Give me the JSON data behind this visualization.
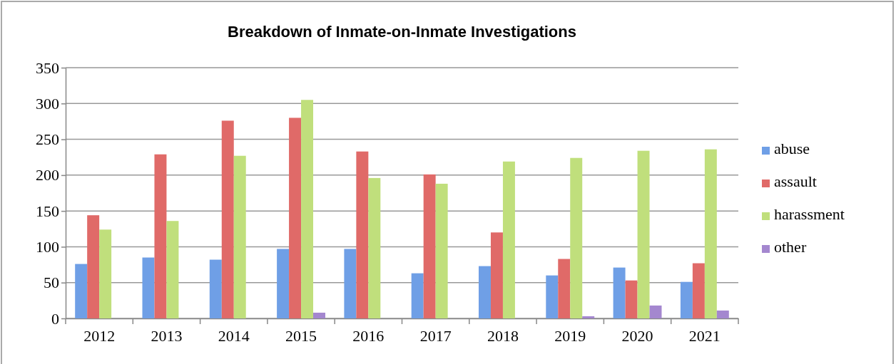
{
  "chart_data": {
    "type": "bar",
    "title": "Breakdown of Inmate-on-Inmate Investigations",
    "categories": [
      "2012",
      "2013",
      "2014",
      "2015",
      "2016",
      "2017",
      "2018",
      "2019",
      "2020",
      "2021"
    ],
    "series": [
      {
        "name": "abuse",
        "color": "#6f9fe6",
        "values": [
          76,
          85,
          82,
          97,
          97,
          63,
          73,
          60,
          71,
          51
        ]
      },
      {
        "name": "assault",
        "color": "#e06a68",
        "values": [
          144,
          229,
          276,
          280,
          233,
          201,
          120,
          83,
          53,
          77
        ]
      },
      {
        "name": "harassment",
        "color": "#c0df7c",
        "values": [
          124,
          136,
          227,
          305,
          196,
          188,
          219,
          224,
          234,
          236
        ]
      },
      {
        "name": "other",
        "color": "#a487cf",
        "values": [
          0,
          0,
          0,
          8,
          0,
          0,
          0,
          3,
          18,
          11
        ]
      }
    ],
    "ylim": [
      0,
      350
    ],
    "yticks": [
      0,
      50,
      100,
      150,
      200,
      250,
      300,
      350
    ],
    "grid": "y",
    "legend": "right"
  }
}
